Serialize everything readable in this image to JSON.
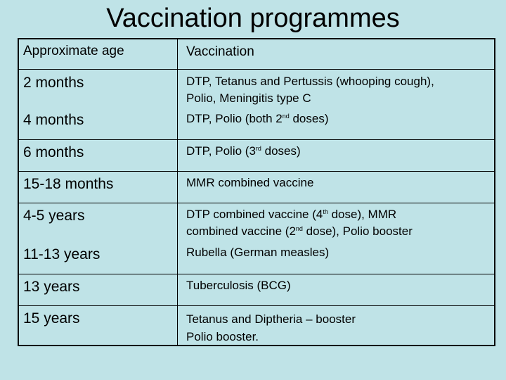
{
  "title": "Vaccination programmes",
  "headers": {
    "age": "Approximate age",
    "vaccination": "Vaccination"
  },
  "rows": [
    {
      "age": "2 months",
      "line1": "DTP, Tetanus and Pertussis (whooping cough),",
      "line2": "Polio, Meningitis type C"
    },
    {
      "age": "4 months",
      "pre": "DTP, Polio (both 2",
      "sup": "nd",
      "post": " doses)"
    },
    {
      "age": "6 months",
      "pre": "DTP, Polio (3",
      "sup": "rd",
      "post": " doses)"
    },
    {
      "age": "15-18 months",
      "text": "MMR combined vaccine"
    },
    {
      "age": "4-5 years",
      "l1_pre": "DTP combined vaccine (4",
      "l1_sup": "th",
      "l1_post": " dose), MMR",
      "l2_pre": "combined vaccine (2",
      "l2_sup": "nd",
      "l2_post": " dose), Polio booster"
    },
    {
      "age": "11-13 years",
      "text": "Rubella (German measles)"
    },
    {
      "age": "13 years",
      "text": "Tuberculosis (BCG)"
    },
    {
      "age": "15 years",
      "line1": "Tetanus and Diptheria – booster",
      "line2": "Polio booster."
    }
  ]
}
